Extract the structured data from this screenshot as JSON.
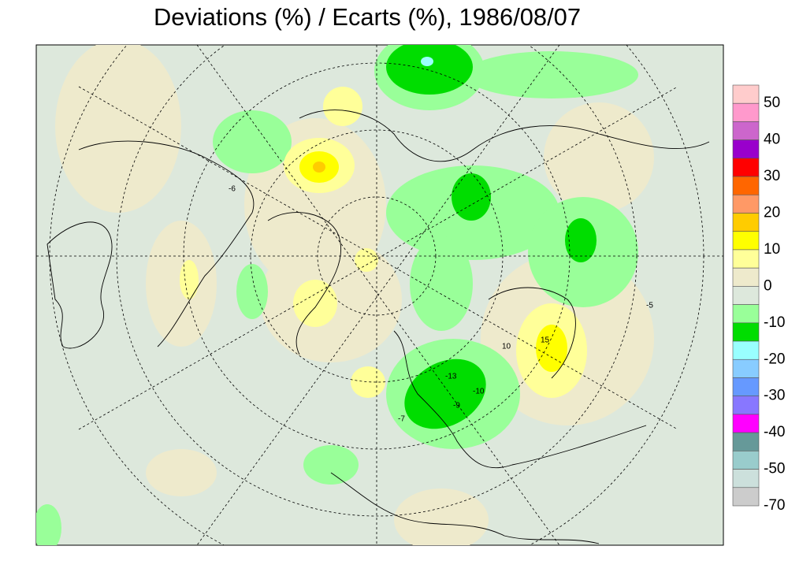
{
  "title": "Deviations (%) / Ecarts (%), 1986/08/07",
  "legend": {
    "colors": [
      "#ffcccc",
      "#ff99cc",
      "#cc66cc",
      "#9900cc",
      "#ff0000",
      "#ff6600",
      "#ff9966",
      "#ffcc00",
      "#ffff00",
      "#ffff99",
      "#eeeacc",
      "#dde8dc",
      "#99ff99",
      "#00dd00",
      "#99ffff",
      "#88ccff",
      "#6699ff",
      "#8877ff",
      "#ff00ff",
      "#669999",
      "#99cccc",
      "#cce0dc",
      "#cccccc"
    ],
    "levels": [
      50,
      40,
      30,
      20,
      10,
      0,
      -10,
      -20,
      -30,
      -40,
      -50,
      -70
    ]
  },
  "contour_labels": [
    "-13",
    "-10",
    "-9",
    "-7",
    "15",
    "10",
    "-6",
    "-5"
  ]
}
